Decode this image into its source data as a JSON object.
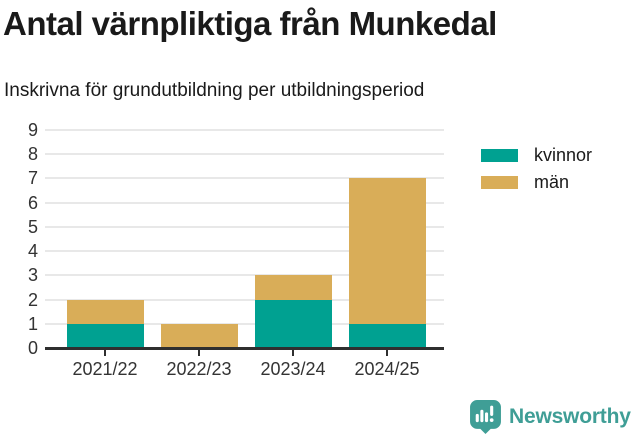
{
  "header": {
    "title": "Antal värnpliktiga från Munkedal",
    "subtitle": "Inskrivna för grundutbildning per utbildningsperiod"
  },
  "chart_data": {
    "type": "bar",
    "stacked": true,
    "title": "Antal värnpliktiga från Munkedal",
    "subtitle": "Inskrivna för grundutbildning per utbildningsperiod",
    "categories": [
      "2021/22",
      "2022/23",
      "2023/24",
      "2024/25"
    ],
    "series": [
      {
        "name": "kvinnor",
        "color": "#00a191",
        "values": [
          1,
          0,
          2,
          1
        ]
      },
      {
        "name": "män",
        "color": "#d9ad58",
        "values": [
          1,
          1,
          1,
          6
        ]
      }
    ],
    "totals": [
      2,
      1,
      3,
      7
    ],
    "xlabel": "",
    "ylabel": "",
    "ylim": [
      0,
      9
    ],
    "yticks": [
      0,
      1,
      2,
      3,
      4,
      5,
      6,
      7,
      8,
      9
    ],
    "grid": true,
    "legend_position": "right"
  },
  "colors": {
    "kvinnor": "#00a191",
    "man": "#d9ad58",
    "grid": "#e8e8e8",
    "axis": "#2f2f2f",
    "axis_text": "#333333",
    "text": "#1a1a1a",
    "brand": "#3f9e96"
  },
  "footer": {
    "brand": "Newsworthy",
    "logo_icon": "newsworthy-badge-bar-chart-icon"
  }
}
